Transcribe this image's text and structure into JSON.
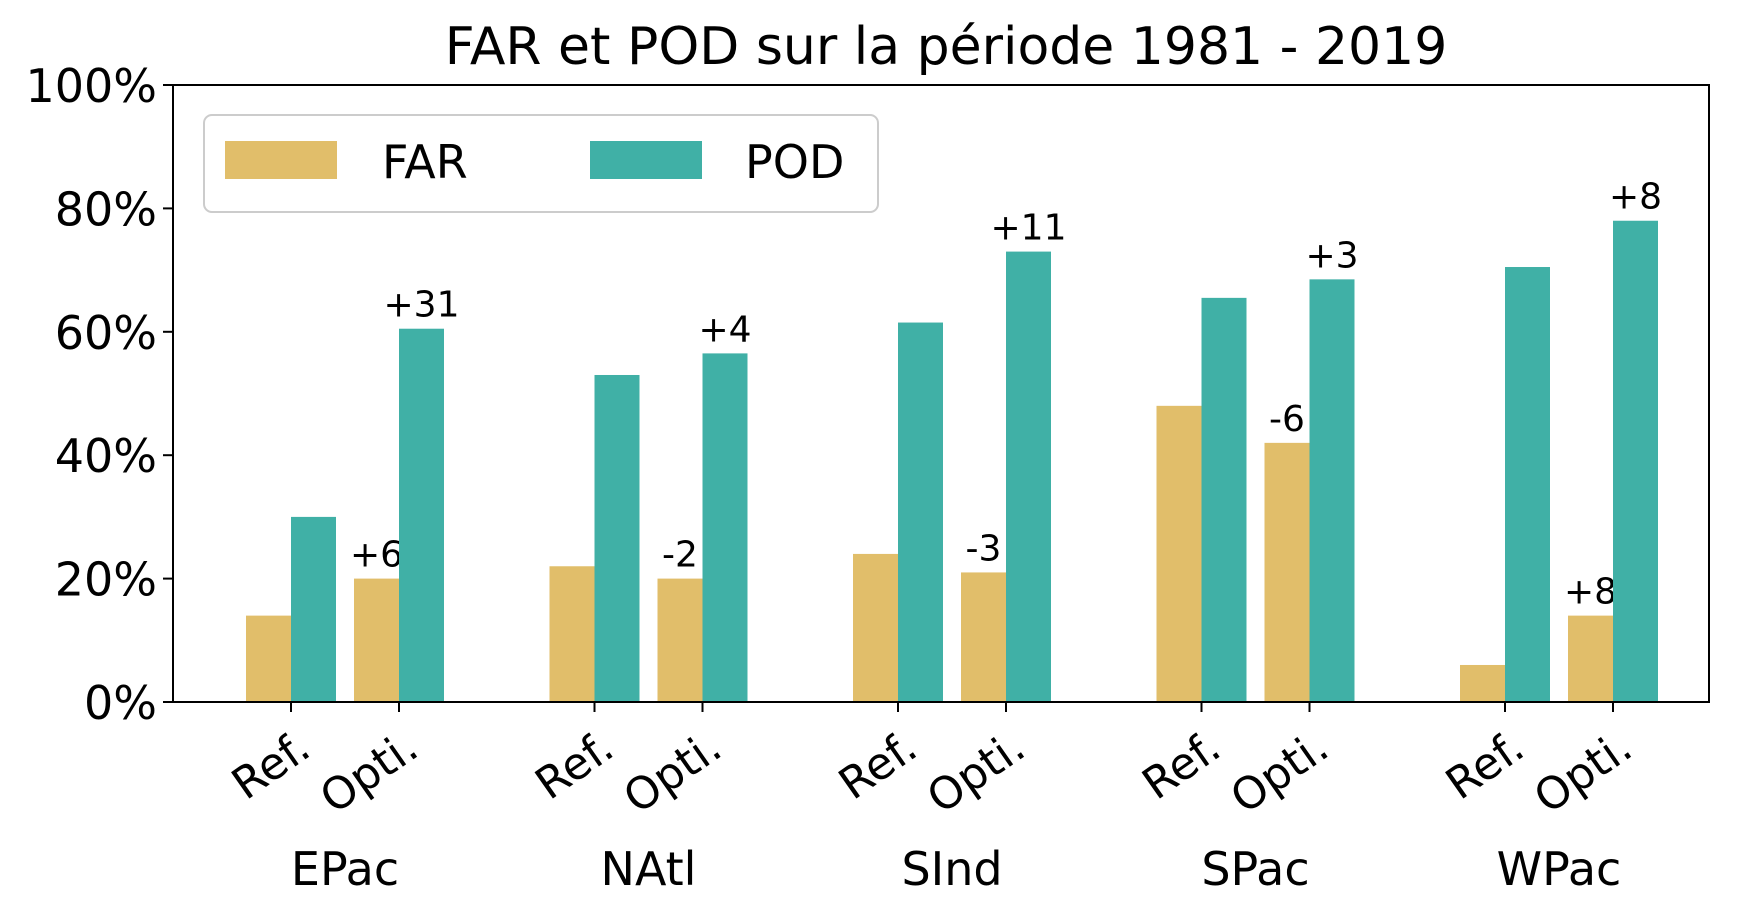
{
  "chart_data": {
    "type": "bar",
    "title": "FAR et POD sur la période 1981 - 2019",
    "xlabel": "",
    "ylabel": "",
    "ylim": [
      0,
      100
    ],
    "y_ticks": [
      "0%",
      "20%",
      "40%",
      "60%",
      "80%",
      "100%"
    ],
    "groups": [
      "EPac",
      "NAtl",
      "SInd",
      "SPac",
      "WPac"
    ],
    "categories": [
      "Ref.",
      "Opti."
    ],
    "series": [
      {
        "name": "FAR",
        "color": "#E1BE6A",
        "values": [
          [
            14,
            20
          ],
          [
            22,
            20
          ],
          [
            24,
            21
          ],
          [
            48,
            42
          ],
          [
            6,
            14
          ]
        ],
        "labels": [
          [
            "",
            "+6"
          ],
          [
            "",
            "-2"
          ],
          [
            "",
            "-3"
          ],
          [
            "",
            "-6"
          ],
          [
            "",
            "+8"
          ]
        ]
      },
      {
        "name": "POD",
        "color": "#40B0A6",
        "values": [
          [
            30,
            60.5
          ],
          [
            53,
            56.5
          ],
          [
            61.5,
            73
          ],
          [
            65.5,
            68.5
          ],
          [
            70.5,
            78
          ]
        ],
        "labels": [
          [
            "",
            "+31"
          ],
          [
            "",
            "+4"
          ],
          [
            "",
            "+11"
          ],
          [
            "",
            "+3"
          ],
          [
            "",
            "+8"
          ]
        ]
      }
    ],
    "legend": {
      "placement": "upper-left",
      "columns": 2,
      "entries": [
        "FAR",
        "POD"
      ]
    },
    "grid": false
  }
}
